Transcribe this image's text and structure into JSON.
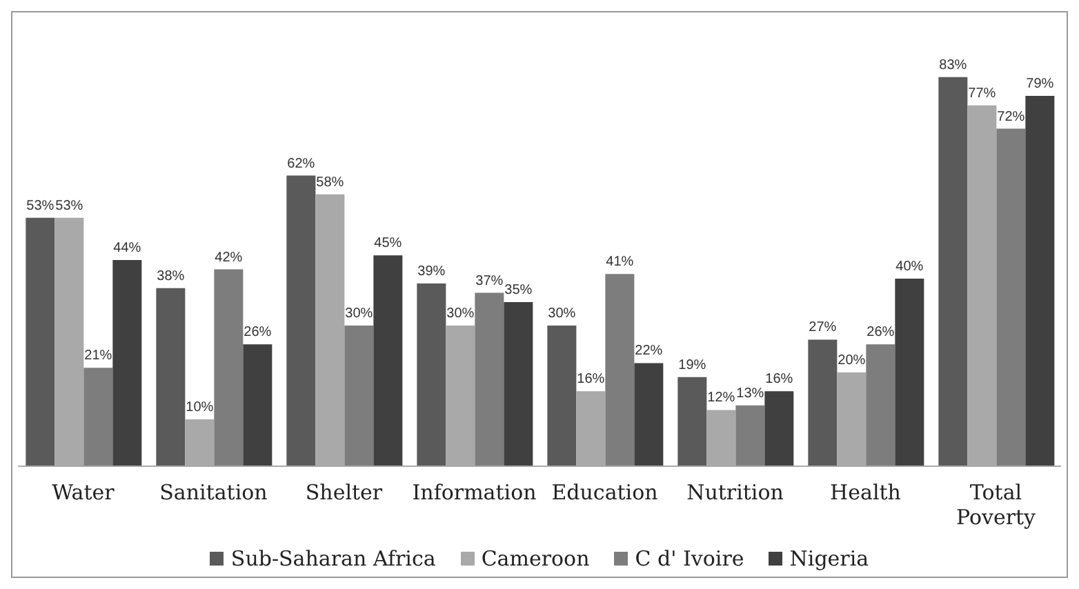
{
  "chart_data": {
    "type": "bar",
    "categories": [
      "Water",
      "Sanitation",
      "Shelter",
      "Information",
      "Education",
      "Nutrition",
      "Health",
      "Total Poverty"
    ],
    "series": [
      {
        "name": "Sub-Saharan Africa",
        "color": "#5a5a5a",
        "values": [
          53,
          38,
          62,
          39,
          30,
          19,
          27,
          83
        ],
        "value_labels": [
          "53%",
          "38%",
          "62%",
          "39%",
          "30%",
          "19%",
          "27%",
          "83%"
        ]
      },
      {
        "name": "Cameroon",
        "color": "#a9a9a9",
        "values": [
          53,
          10,
          58,
          30,
          16,
          12,
          20,
          77
        ],
        "value_labels": [
          "53%",
          "10%",
          "58%",
          "30%",
          "16%",
          "12%",
          "20%",
          "77%"
        ]
      },
      {
        "name": "C d' Ivoire",
        "color": "#7d7d7d",
        "values": [
          21,
          42,
          30,
          37,
          41,
          13,
          26,
          72
        ],
        "value_labels": [
          "21%",
          "42%",
          "30%",
          "37%",
          "41%",
          "13%",
          "26%",
          "72%"
        ]
      },
      {
        "name": "Nigeria",
        "color": "#404040",
        "values": [
          44,
          26,
          45,
          35,
          22,
          16,
          40,
          79
        ],
        "value_labels": [
          "44%",
          "26%",
          "45%",
          "35%",
          "22%",
          "16%",
          "40%",
          "79%"
        ]
      }
    ],
    "legend": "bottom",
    "grid": false
  }
}
